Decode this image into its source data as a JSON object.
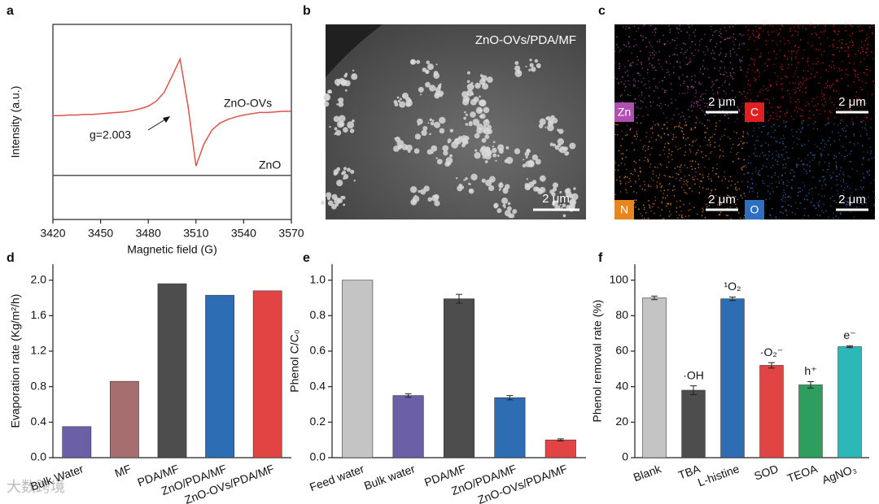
{
  "panel_labels": [
    "a",
    "b",
    "c",
    "d",
    "e",
    "f"
  ],
  "chart_data": [
    {
      "type": "line",
      "xlabel": "Magnetic field (G)",
      "ylabel": "Intensity (a.u.)",
      "x": [
        3420,
        3425,
        3430,
        3435,
        3440,
        3445,
        3450,
        3455,
        3460,
        3465,
        3470,
        3475,
        3480,
        3485,
        3490,
        3495,
        3500,
        3505,
        3510,
        3515,
        3520,
        3525,
        3530,
        3535,
        3540,
        3545,
        3550,
        3555,
        3560,
        3565,
        3570
      ],
      "series": [
        {
          "name": "ZnO-OVs",
          "color": "#d9534a",
          "values": [
            0.95,
            0.95,
            0.96,
            0.96,
            0.97,
            0.97,
            0.98,
            0.99,
            1.0,
            1.01,
            1.03,
            1.06,
            1.1,
            1.18,
            1.32,
            1.58,
            1.85,
            1.1,
            0.15,
            0.5,
            0.72,
            0.83,
            0.89,
            0.93,
            0.96,
            0.98,
            1.0,
            1.0,
            1.01,
            1.02,
            1.02
          ]
        },
        {
          "name": "ZnO",
          "color": "#555555",
          "values": [
            0,
            0,
            0,
            0,
            0,
            0,
            0,
            0,
            0,
            0,
            0,
            0,
            0,
            0,
            0,
            0,
            0,
            0,
            0,
            0,
            0,
            0,
            0,
            0,
            0,
            0,
            0,
            0,
            0,
            0,
            0
          ]
        }
      ],
      "annotation": "g=2.003",
      "xlim": [
        3420,
        3570
      ],
      "xticks": [
        3420,
        3450,
        3480,
        3510,
        3540,
        3570
      ],
      "ylim": [
        -0.7,
        2.4
      ]
    },
    {
      "type": "bar",
      "ylabel": "Evaporation rate (Kg/m²/h)",
      "categories": [
        "Bulk Water",
        "MF",
        "PDA/MF",
        "ZnO/PDA/MF",
        "ZnO-OVs/PDA/MF"
      ],
      "values": [
        0.35,
        0.86,
        1.96,
        1.83,
        1.88
      ],
      "colors": [
        "#6b5fa8",
        "#a66e6e",
        "#4d4d4d",
        "#2c6db3",
        "#e24343"
      ],
      "ylim": [
        0,
        2.18
      ],
      "yticks": [
        {
          "value": 0,
          "label": "0.0"
        },
        {
          "value": 0.4,
          "label": "0.4"
        },
        {
          "value": 0.8,
          "label": "0.8"
        },
        {
          "value": 1.2,
          "label": "1.2"
        },
        {
          "value": 1.6,
          "label": "1.6"
        },
        {
          "value": 2,
          "label": "2.0"
        }
      ]
    },
    {
      "type": "bar",
      "ylabel": "Phenol C/C₀",
      "categories": [
        "Feed water",
        "Bulk water",
        "PDA/MF",
        "ZnO/PDA/MF",
        "ZnO-OVs/PDA/MF"
      ],
      "values": [
        1.0,
        0.35,
        0.895,
        0.338,
        0.1
      ],
      "errors": [
        0,
        0.01,
        0.025,
        0.012,
        0.006
      ],
      "colors": [
        "#c4c4c4",
        "#6b5fa8",
        "#4d4d4d",
        "#2c6db3",
        "#e24343"
      ],
      "ylim": [
        0,
        1.09
      ],
      "yticks": [
        {
          "value": 0,
          "label": "0.0"
        },
        {
          "value": 0.2,
          "label": "0.2"
        },
        {
          "value": 0.4,
          "label": "0.4"
        },
        {
          "value": 0.6,
          "label": "0.6"
        },
        {
          "value": 0.8,
          "label": "0.8"
        },
        {
          "value": 1,
          "label": "1.0"
        }
      ]
    },
    {
      "type": "bar",
      "ylabel": "Phenol removal rate (%)",
      "categories": [
        "Blank",
        "TBA",
        "L-histine",
        "SOD",
        "TEOA",
        "AgNO₃"
      ],
      "values": [
        90,
        38,
        89.5,
        52,
        41,
        62.5
      ],
      "errors": [
        1,
        2.5,
        1,
        1.5,
        1.8,
        0.5
      ],
      "bar_notes": [
        null,
        "·OH",
        "¹O₂",
        "·O₂⁻",
        "h⁺",
        "e⁻"
      ],
      "colors": [
        "#c4c4c4",
        "#4d4d4d",
        "#2c6db3",
        "#e24343",
        "#2e9e5e",
        "#2cb8b8"
      ],
      "ylim": [
        0,
        109
      ],
      "yticks": [
        0,
        20,
        40,
        60,
        80,
        100
      ]
    }
  ],
  "sem_image": {
    "label": "ZnO-OVs/PDA/MF",
    "scale_bar": "2 μm"
  },
  "eds_maps": [
    {
      "element": "Zn",
      "scale_bar": "2 μm",
      "color": "#b04fb0"
    },
    {
      "element": "C",
      "scale_bar": "2 μm",
      "color": "#e02020"
    },
    {
      "element": "N",
      "scale_bar": "2 μm",
      "color": "#e8861e"
    },
    {
      "element": "O",
      "scale_bar": "2 μm",
      "color": "#2f6fc0"
    }
  ],
  "watermark": "大数跨境"
}
